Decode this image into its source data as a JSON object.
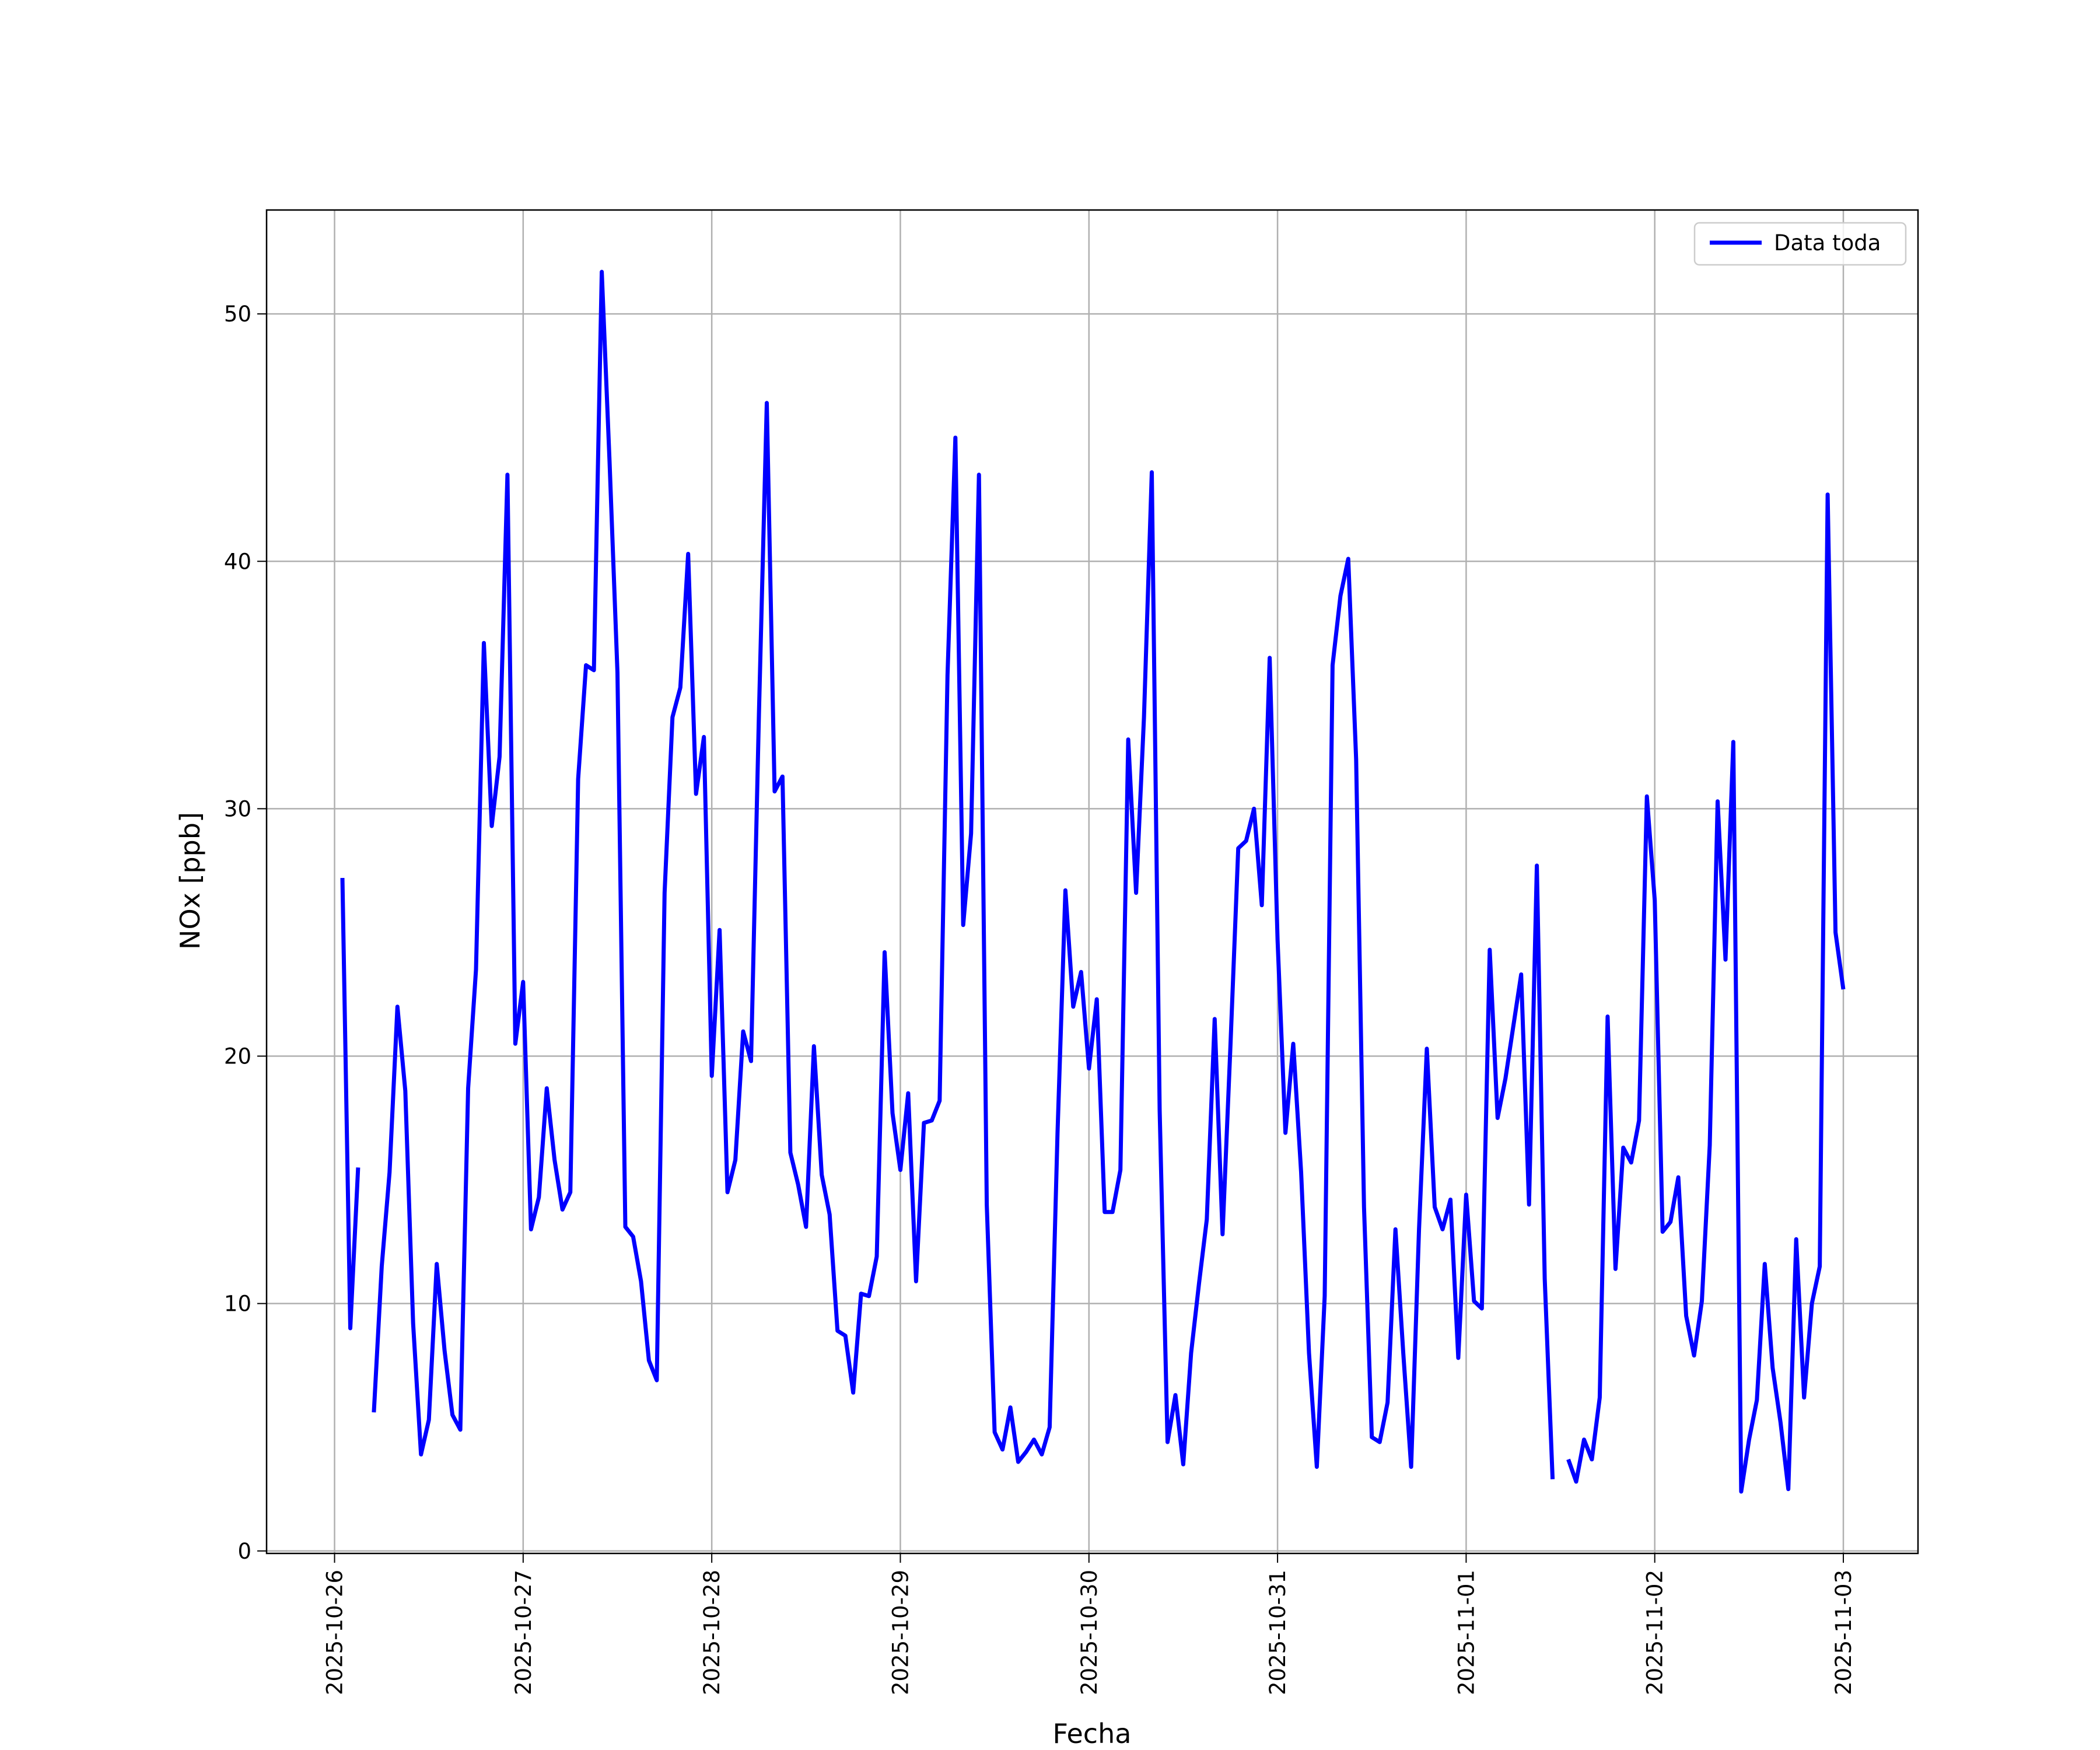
{
  "chart_data": {
    "type": "line",
    "xlabel": "Fecha",
    "ylabel": "NOx [ppb]",
    "x": [
      "2025-10-26 01:00",
      "2025-10-26 02:00",
      "2025-10-26 03:00",
      "2025-10-26 04:00",
      "2025-10-26 05:00",
      "2025-10-26 06:00",
      "2025-10-26 07:00",
      "2025-10-26 08:00",
      "2025-10-26 09:00",
      "2025-10-26 10:00",
      "2025-10-26 11:00",
      "2025-10-26 12:00",
      "2025-10-26 13:00",
      "2025-10-26 14:00",
      "2025-10-26 15:00",
      "2025-10-26 16:00",
      "2025-10-26 17:00",
      "2025-10-26 18:00",
      "2025-10-26 19:00",
      "2025-10-26 20:00",
      "2025-10-26 21:00",
      "2025-10-26 22:00",
      "2025-10-26 23:00",
      "2025-10-27 00:00",
      "2025-10-27 01:00",
      "2025-10-27 02:00",
      "2025-10-27 03:00",
      "2025-10-27 04:00",
      "2025-10-27 05:00",
      "2025-10-27 06:00",
      "2025-10-27 07:00",
      "2025-10-27 08:00",
      "2025-10-27 09:00",
      "2025-10-27 10:00",
      "2025-10-27 11:00",
      "2025-10-27 12:00",
      "2025-10-27 13:00",
      "2025-10-27 14:00",
      "2025-10-27 15:00",
      "2025-10-27 16:00",
      "2025-10-27 17:00",
      "2025-10-27 18:00",
      "2025-10-27 19:00",
      "2025-10-27 20:00",
      "2025-10-27 21:00",
      "2025-10-27 22:00",
      "2025-10-27 23:00",
      "2025-10-28 00:00",
      "2025-10-28 01:00",
      "2025-10-28 02:00",
      "2025-10-28 03:00",
      "2025-10-28 04:00",
      "2025-10-28 05:00",
      "2025-10-28 06:00",
      "2025-10-28 07:00",
      "2025-10-28 08:00",
      "2025-10-28 09:00",
      "2025-10-28 10:00",
      "2025-10-28 11:00",
      "2025-10-28 12:00",
      "2025-10-28 13:00",
      "2025-10-28 14:00",
      "2025-10-28 15:00",
      "2025-10-28 16:00",
      "2025-10-28 17:00",
      "2025-10-28 18:00",
      "2025-10-28 19:00",
      "2025-10-28 20:00",
      "2025-10-28 21:00",
      "2025-10-28 22:00",
      "2025-10-28 23:00",
      "2025-10-29 00:00",
      "2025-10-29 01:00",
      "2025-10-29 02:00",
      "2025-10-29 03:00",
      "2025-10-29 04:00",
      "2025-10-29 05:00",
      "2025-10-29 06:00",
      "2025-10-29 07:00",
      "2025-10-29 08:00",
      "2025-10-29 09:00",
      "2025-10-29 10:00",
      "2025-10-29 11:00",
      "2025-10-29 12:00",
      "2025-10-29 13:00",
      "2025-10-29 14:00",
      "2025-10-29 15:00",
      "2025-10-29 16:00",
      "2025-10-29 17:00",
      "2025-10-29 18:00",
      "2025-10-29 19:00",
      "2025-10-29 20:00",
      "2025-10-29 21:00",
      "2025-10-29 22:00",
      "2025-10-29 23:00",
      "2025-10-30 00:00",
      "2025-10-30 01:00",
      "2025-10-30 02:00",
      "2025-10-30 03:00",
      "2025-10-30 04:00",
      "2025-10-30 05:00",
      "2025-10-30 06:00",
      "2025-10-30 07:00",
      "2025-10-30 08:00",
      "2025-10-30 09:00",
      "2025-10-30 10:00",
      "2025-10-30 11:00",
      "2025-10-30 12:00",
      "2025-10-30 13:00",
      "2025-10-30 14:00",
      "2025-10-30 15:00",
      "2025-10-30 16:00",
      "2025-10-30 17:00",
      "2025-10-30 18:00",
      "2025-10-30 19:00",
      "2025-10-30 20:00",
      "2025-10-30 21:00",
      "2025-10-30 22:00",
      "2025-10-30 23:00",
      "2025-10-31 00:00",
      "2025-10-31 01:00",
      "2025-10-31 02:00",
      "2025-10-31 03:00",
      "2025-10-31 04:00",
      "2025-10-31 05:00",
      "2025-10-31 06:00",
      "2025-10-31 07:00",
      "2025-10-31 08:00",
      "2025-10-31 09:00",
      "2025-10-31 10:00",
      "2025-10-31 11:00",
      "2025-10-31 12:00",
      "2025-10-31 13:00",
      "2025-10-31 14:00",
      "2025-10-31 15:00",
      "2025-10-31 16:00",
      "2025-10-31 17:00",
      "2025-10-31 18:00",
      "2025-10-31 19:00",
      "2025-10-31 20:00",
      "2025-10-31 21:00",
      "2025-10-31 22:00",
      "2025-10-31 23:00",
      "2025-11-01 00:00",
      "2025-11-01 01:00",
      "2025-11-01 02:00",
      "2025-11-01 03:00",
      "2025-11-01 04:00",
      "2025-11-01 05:00",
      "2025-11-01 06:00",
      "2025-11-01 07:00",
      "2025-11-01 08:00",
      "2025-11-01 09:00",
      "2025-11-01 10:00",
      "2025-11-01 11:00",
      "2025-11-01 12:00",
      "2025-11-01 13:00",
      "2025-11-01 14:00",
      "2025-11-01 15:00",
      "2025-11-01 16:00",
      "2025-11-01 17:00",
      "2025-11-01 18:00",
      "2025-11-01 19:00",
      "2025-11-01 20:00",
      "2025-11-01 21:00",
      "2025-11-01 22:00",
      "2025-11-01 23:00",
      "2025-11-02 00:00",
      "2025-11-02 01:00",
      "2025-11-02 02:00",
      "2025-11-02 03:00",
      "2025-11-02 04:00",
      "2025-11-02 05:00",
      "2025-11-02 06:00",
      "2025-11-02 07:00",
      "2025-11-02 08:00",
      "2025-11-02 09:00",
      "2025-11-02 10:00",
      "2025-11-02 11:00",
      "2025-11-02 12:00",
      "2025-11-02 13:00",
      "2025-11-02 14:00",
      "2025-11-02 15:00",
      "2025-11-02 16:00",
      "2025-11-02 17:00",
      "2025-11-02 18:00",
      "2025-11-02 19:00",
      "2025-11-02 20:00",
      "2025-11-02 21:00",
      "2025-11-02 22:00",
      "2025-11-02 23:00",
      "2025-11-03 00:00"
    ],
    "series": [
      {
        "name": "Data toda",
        "color": "#0000ff",
        "values": [
          27.2,
          9.0,
          15.5,
          null,
          5.6,
          11.5,
          15.3,
          22.0,
          18.6,
          9.2,
          3.9,
          5.3,
          11.6,
          8.1,
          5.5,
          4.9,
          18.7,
          23.5,
          36.7,
          29.3,
          32.1,
          43.5,
          20.5,
          23.0,
          13.0,
          14.3,
          18.7,
          15.8,
          13.8,
          14.5,
          31.2,
          35.8,
          35.6,
          51.7,
          44.0,
          35.5,
          13.1,
          12.7,
          10.9,
          7.7,
          6.9,
          26.6,
          33.7,
          34.9,
          40.3,
          30.6,
          32.9,
          19.2,
          25.1,
          14.5,
          15.8,
          21.0,
          19.8,
          33.8,
          46.4,
          30.7,
          31.3,
          16.1,
          14.8,
          13.1,
          20.4,
          15.2,
          13.6,
          8.9,
          8.7,
          6.4,
          10.4,
          10.3,
          11.9,
          24.2,
          17.7,
          15.4,
          18.5,
          10.9,
          17.3,
          17.4,
          18.2,
          35.4,
          45.0,
          25.3,
          29.0,
          43.5,
          14.0,
          4.8,
          4.1,
          5.8,
          3.6,
          4.0,
          4.5,
          3.9,
          5.0,
          16.9,
          26.7,
          22.0,
          23.4,
          19.5,
          22.3,
          13.7,
          13.7,
          15.4,
          32.8,
          26.6,
          33.7,
          43.6,
          17.8,
          4.4,
          6.3,
          3.5,
          8.0,
          10.8,
          13.4,
          21.5,
          12.8,
          20.4,
          28.4,
          28.7,
          30.0,
          26.1,
          36.1,
          24.7,
          16.9,
          20.5,
          15.3,
          8.0,
          3.4,
          10.3,
          35.8,
          38.6,
          40.1,
          32.0,
          13.9,
          4.6,
          4.4,
          6.0,
          13.0,
          8.0,
          3.4,
          13.0,
          20.3,
          13.9,
          13.0,
          14.2,
          7.8,
          14.4,
          10.1,
          9.8,
          24.3,
          17.5,
          19.1,
          21.2,
          23.3,
          14.0,
          27.7,
          11.0,
          2.9,
          null,
          3.7,
          2.8,
          4.5,
          3.7,
          6.2,
          21.6,
          11.4,
          16.3,
          15.7,
          17.4,
          30.5,
          26.3,
          12.9,
          13.3,
          15.1,
          9.5,
          7.9,
          10.1,
          16.4,
          30.3,
          23.9,
          32.7,
          2.4,
          4.5,
          6.1,
          11.6,
          7.4,
          5.2,
          2.5,
          12.6,
          6.2,
          10.0,
          11.5,
          42.7,
          25.0,
          22.7
        ]
      }
    ],
    "xlim": [
      "2025-10-25 15:21",
      "2025-11-03 09:30"
    ],
    "xticks": [
      "2025-10-26",
      "2025-10-27",
      "2025-10-28",
      "2025-10-29",
      "2025-10-30",
      "2025-10-31",
      "2025-11-01",
      "2025-11-02",
      "2025-11-03"
    ],
    "ylim": [
      -0.1,
      54.2
    ],
    "yticks": [
      0,
      10,
      20,
      30,
      40,
      50
    ],
    "grid": true,
    "legend": "upper right"
  }
}
